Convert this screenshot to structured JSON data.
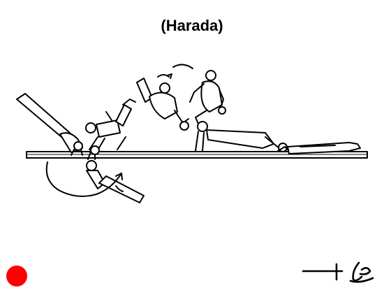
{
  "title": "(Harada)",
  "figure": {
    "description_icon": "gymnastics-beam-skill-sequence-icon"
  },
  "marker": {
    "color": "#ff0000",
    "icon": "red-dot-icon"
  },
  "notation": {
    "icon": "skill-symbol-icon"
  }
}
